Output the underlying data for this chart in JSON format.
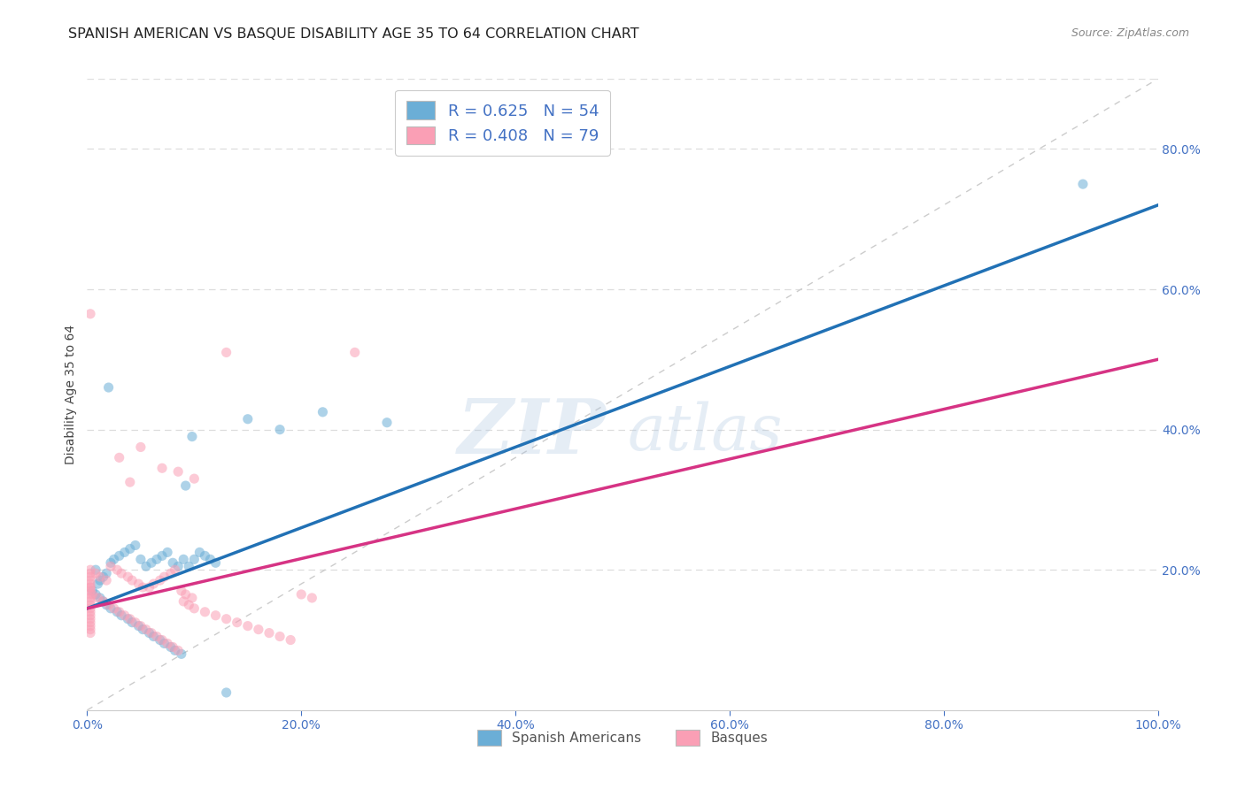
{
  "title": "SPANISH AMERICAN VS BASQUE DISABILITY AGE 35 TO 64 CORRELATION CHART",
  "source": "Source: ZipAtlas.com",
  "ylabel": "Disability Age 35 to 64",
  "xlim": [
    0.0,
    1.0
  ],
  "ylim": [
    0.0,
    0.9
  ],
  "xticks": [
    0.0,
    0.2,
    0.4,
    0.6,
    0.8,
    1.0
  ],
  "xticklabels": [
    "0.0%",
    "20.0%",
    "40.0%",
    "60.0%",
    "80.0%",
    "100.0%"
  ],
  "yticks": [
    0.2,
    0.4,
    0.6,
    0.8
  ],
  "yticklabels": [
    "20.0%",
    "40.0%",
    "60.0%",
    "80.0%"
  ],
  "blue_color": "#6baed6",
  "pink_color": "#fa9fb5",
  "blue_line_color": "#2171b5",
  "pink_line_color": "#d63384",
  "diagonal_color": "#cccccc",
  "legend_R1": "R = 0.625",
  "legend_N1": "N = 54",
  "legend_R2": "R = 0.408",
  "legend_N2": "N = 79",
  "legend_label1": "Spanish Americans",
  "legend_label2": "Basques",
  "blue_scatter_x": [
    0.02,
    0.008,
    0.012,
    0.018,
    0.022,
    0.015,
    0.01,
    0.025,
    0.03,
    0.035,
    0.04,
    0.045,
    0.05,
    0.055,
    0.06,
    0.065,
    0.07,
    0.075,
    0.08,
    0.085,
    0.09,
    0.095,
    0.1,
    0.105,
    0.11,
    0.115,
    0.12,
    0.005,
    0.008,
    0.012,
    0.015,
    0.018,
    0.022,
    0.028,
    0.032,
    0.038,
    0.042,
    0.048,
    0.052,
    0.058,
    0.062,
    0.068,
    0.072,
    0.078,
    0.082,
    0.088,
    0.092,
    0.098,
    0.15,
    0.18,
    0.22,
    0.28,
    0.93,
    0.13
  ],
  "blue_scatter_y": [
    0.46,
    0.2,
    0.185,
    0.195,
    0.21,
    0.19,
    0.18,
    0.215,
    0.22,
    0.225,
    0.23,
    0.235,
    0.215,
    0.205,
    0.21,
    0.215,
    0.22,
    0.225,
    0.21,
    0.205,
    0.215,
    0.205,
    0.215,
    0.225,
    0.22,
    0.215,
    0.21,
    0.17,
    0.165,
    0.16,
    0.155,
    0.15,
    0.145,
    0.14,
    0.135,
    0.13,
    0.125,
    0.12,
    0.115,
    0.11,
    0.105,
    0.1,
    0.095,
    0.09,
    0.085,
    0.08,
    0.32,
    0.39,
    0.415,
    0.4,
    0.425,
    0.41,
    0.75,
    0.025
  ],
  "pink_scatter_x": [
    0.008,
    0.012,
    0.018,
    0.022,
    0.028,
    0.032,
    0.038,
    0.042,
    0.048,
    0.052,
    0.058,
    0.062,
    0.068,
    0.072,
    0.078,
    0.082,
    0.088,
    0.092,
    0.098,
    0.005,
    0.01,
    0.015,
    0.02,
    0.025,
    0.03,
    0.035,
    0.04,
    0.045,
    0.05,
    0.055,
    0.06,
    0.065,
    0.07,
    0.075,
    0.08,
    0.085,
    0.09,
    0.095,
    0.1,
    0.11,
    0.12,
    0.13,
    0.14,
    0.15,
    0.16,
    0.17,
    0.18,
    0.19,
    0.2,
    0.21,
    0.03,
    0.05,
    0.07,
    0.085,
    0.1,
    0.13,
    0.25,
    0.04,
    0.003,
    0.003,
    0.003,
    0.003,
    0.003,
    0.003,
    0.003,
    0.003,
    0.003,
    0.003,
    0.003,
    0.003,
    0.003,
    0.003,
    0.003,
    0.003,
    0.003,
    0.003,
    0.003,
    0.003,
    0.003
  ],
  "pink_scatter_y": [
    0.195,
    0.19,
    0.185,
    0.205,
    0.2,
    0.195,
    0.19,
    0.185,
    0.18,
    0.175,
    0.175,
    0.18,
    0.185,
    0.19,
    0.195,
    0.2,
    0.17,
    0.165,
    0.16,
    0.165,
    0.16,
    0.155,
    0.15,
    0.145,
    0.14,
    0.135,
    0.13,
    0.125,
    0.12,
    0.115,
    0.11,
    0.105,
    0.1,
    0.095,
    0.09,
    0.085,
    0.155,
    0.15,
    0.145,
    0.14,
    0.135,
    0.13,
    0.125,
    0.12,
    0.115,
    0.11,
    0.105,
    0.1,
    0.165,
    0.16,
    0.36,
    0.375,
    0.345,
    0.34,
    0.33,
    0.51,
    0.51,
    0.325,
    0.565,
    0.175,
    0.18,
    0.185,
    0.19,
    0.195,
    0.2,
    0.175,
    0.17,
    0.165,
    0.16,
    0.155,
    0.15,
    0.145,
    0.14,
    0.135,
    0.13,
    0.125,
    0.12,
    0.115,
    0.11
  ],
  "blue_line_x0": 0.0,
  "blue_line_x1": 1.0,
  "blue_line_y0": 0.145,
  "blue_line_y1": 0.72,
  "pink_line_x0": 0.0,
  "pink_line_x1": 1.0,
  "pink_line_y0": 0.145,
  "pink_line_y1": 0.5,
  "marker_size": 65,
  "marker_alpha": 0.55,
  "grid_color": "#dddddd",
  "title_fontsize": 11.5,
  "axis_label_fontsize": 10,
  "tick_fontsize": 10,
  "tick_color": "#4472c4",
  "ylabel_color": "#444444",
  "background_color": "#ffffff"
}
